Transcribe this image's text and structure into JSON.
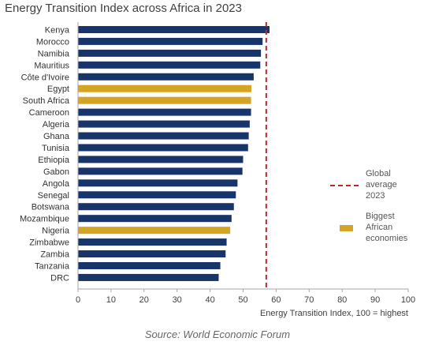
{
  "chart_data": {
    "type": "bar",
    "orientation": "horizontal",
    "title": "Energy Transition Index across Africa in 2023",
    "xlabel": "Energy Transition Index, 100 = highest",
    "ylabel": "",
    "xlim": [
      0,
      100
    ],
    "xticks": [
      0,
      10,
      20,
      30,
      40,
      50,
      60,
      70,
      80,
      90,
      100
    ],
    "grid": false,
    "legend_position": "right",
    "categories": [
      "Kenya",
      "Morocco",
      "Namibia",
      "Mauritius",
      "Côte d'Ivoire",
      "Egypt",
      "South Africa",
      "Cameroon",
      "Algeria",
      "Ghana",
      "Tunisia",
      "Ethiopia",
      "Gabon",
      "Angola",
      "Senegal",
      "Botswana",
      "Mozambique",
      "Nigeria",
      "Zimbabwe",
      "Zambia",
      "Tanzania",
      "DRC"
    ],
    "values": [
      58.0,
      55.9,
      55.4,
      55.2,
      53.2,
      52.5,
      52.4,
      52.4,
      52.0,
      51.7,
      51.5,
      50.0,
      49.8,
      48.3,
      47.8,
      47.2,
      46.5,
      46.1,
      45.0,
      44.7,
      43.1,
      42.6
    ],
    "highlighted": [
      "Egypt",
      "South Africa",
      "Nigeria"
    ],
    "reference_line": {
      "value": 57,
      "label": "Global average 2023",
      "style": "dashed"
    },
    "legend": [
      {
        "label": "Global average 2023",
        "lines": [
          "Global",
          "average",
          "2023"
        ],
        "marker": "dashed-line"
      },
      {
        "label": "Biggest African economies",
        "lines": [
          "Biggest",
          "African",
          "economies"
        ],
        "marker": "bar"
      }
    ],
    "colors": {
      "bar": "#17346b",
      "highlight": "#d4a423",
      "average_line": "#c0272d"
    }
  },
  "source": "Source: World Economic Forum"
}
